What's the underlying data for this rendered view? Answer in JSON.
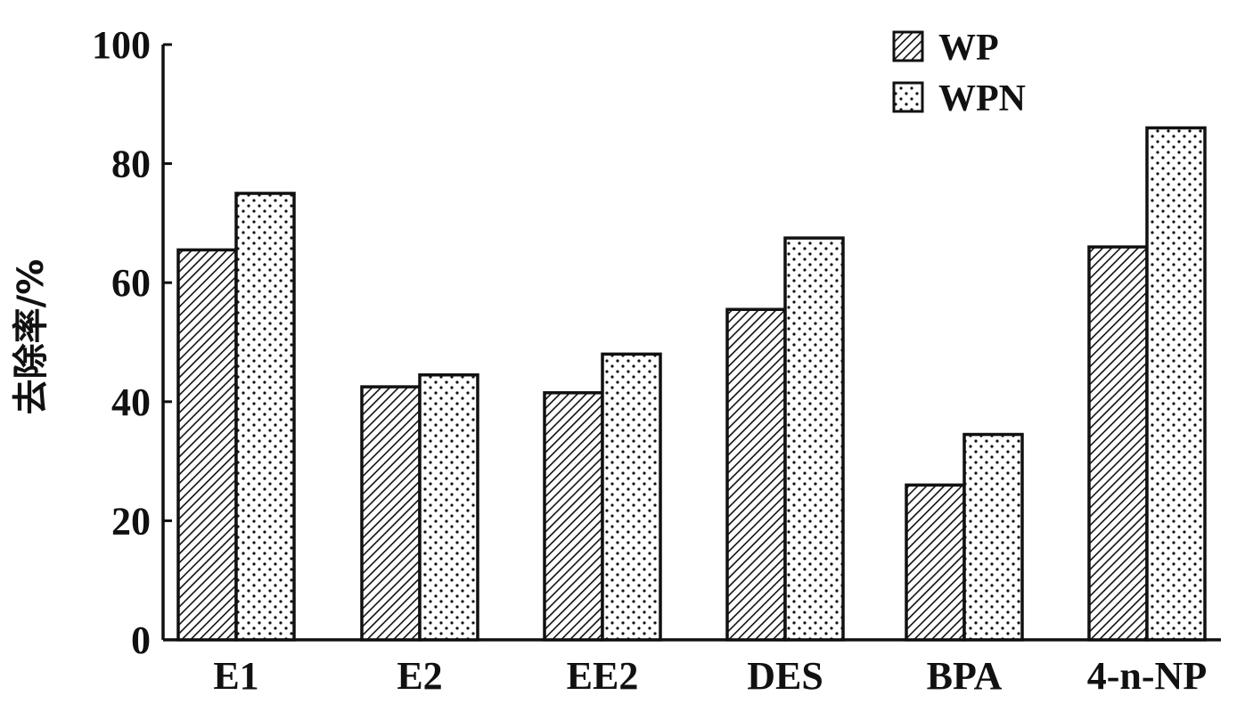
{
  "chart_data": {
    "type": "bar",
    "title": "",
    "xlabel": "",
    "ylabel": "去除率/%",
    "ylim": [
      0,
      100
    ],
    "yticks": [
      0,
      20,
      40,
      60,
      80,
      100
    ],
    "grid": false,
    "legend_position": "top-right",
    "categories": [
      "E1",
      "E2",
      "EE2",
      "DES",
      "BPA",
      "4-n-NP"
    ],
    "series": [
      {
        "name": "WP",
        "pattern": "diagonal-hatch",
        "values": [
          65.5,
          42.5,
          41.5,
          55.5,
          26,
          66
        ]
      },
      {
        "name": "WPN",
        "pattern": "dots",
        "values": [
          75,
          44.5,
          48,
          67.5,
          34.5,
          86
        ]
      }
    ],
    "colors": {
      "ink": "#111111",
      "background": "#ffffff"
    }
  }
}
